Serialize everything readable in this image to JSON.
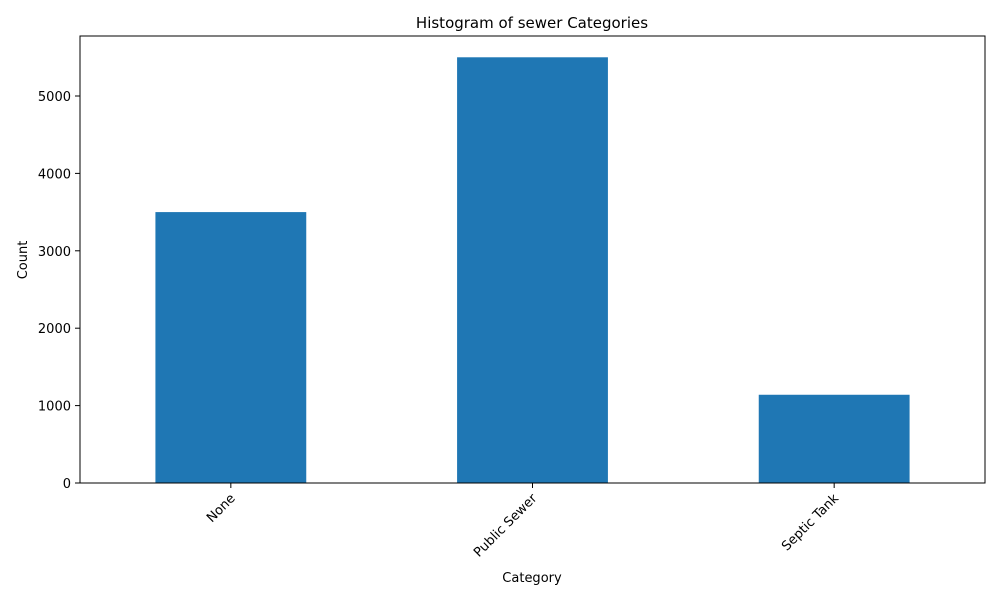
{
  "chart_data": {
    "type": "bar",
    "title": "Histogram of sewer Categories",
    "xlabel": "Category",
    "ylabel": "Count",
    "categories": [
      "None",
      "Public Sewer",
      "Septic Tank"
    ],
    "values": [
      3500,
      5500,
      1140
    ],
    "ylim": [
      0,
      5775
    ],
    "yticks": [
      0,
      1000,
      2000,
      3000,
      4000,
      5000
    ],
    "grid": false,
    "legend": "none",
    "bar_color": "#1f77b4",
    "xtick_rotation": -45
  }
}
